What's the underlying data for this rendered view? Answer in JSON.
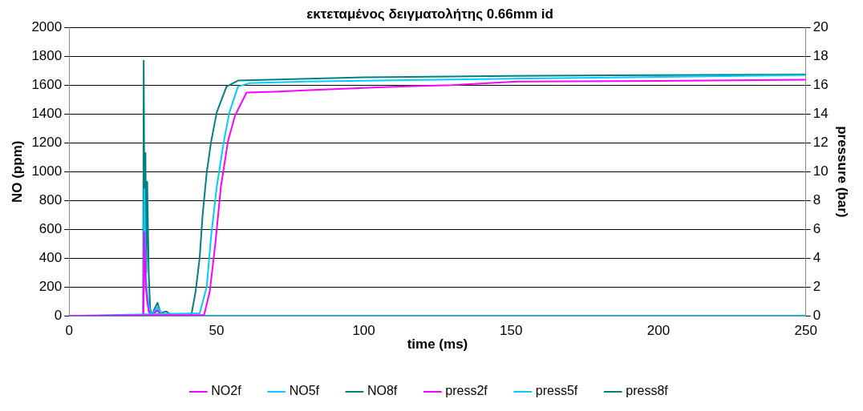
{
  "chart_data": {
    "type": "line",
    "title": "εκτεταμένος δειγματολήτης 0.66mm id",
    "xlabel": "time (ms)",
    "ylabel": "NO (ppm)",
    "y2label": "pressure (bar)",
    "xlim": [
      0,
      250
    ],
    "xticks": [
      0,
      50,
      100,
      150,
      200,
      250
    ],
    "ylim": [
      0,
      2000
    ],
    "yticks": [
      0,
      200,
      400,
      600,
      800,
      1000,
      1200,
      1400,
      1600,
      1800,
      2000
    ],
    "y2lim": [
      0,
      20
    ],
    "y2ticks": [
      0,
      2,
      4,
      6,
      8,
      10,
      12,
      14,
      16,
      18,
      20
    ],
    "grid": "y",
    "legend": "bottom",
    "marker": "none",
    "line_style": "solid",
    "series": [
      {
        "name": "NO2f",
        "color": "#ff00ff",
        "x": [
          0,
          45.8,
          47.7,
          49.6,
          51.5,
          53.9,
          56.3,
          60.2,
          70,
          80,
          110,
          130,
          152,
          200,
          250
        ],
        "values": [
          0,
          6,
          166,
          498,
          896,
          1211,
          1389,
          1549,
          1555,
          1565,
          1590,
          1600,
          1626,
          1630,
          1638
        ]
      },
      {
        "name": "NO5f",
        "color": "#00ccff",
        "x": [
          0,
          44.3,
          46.7,
          48.2,
          50.1,
          52.5,
          54.4,
          57.3,
          61.1,
          80,
          150,
          250
        ],
        "values": [
          0,
          18,
          202,
          558,
          896,
          1211,
          1412,
          1590,
          1614,
          1625,
          1645,
          1670
        ]
      },
      {
        "name": "NO8f",
        "color": "#008080",
        "x": [
          0,
          41.4,
          42.9,
          44.3,
          45.3,
          46.7,
          48.2,
          50.1,
          53.4,
          57.3,
          100,
          150,
          250
        ],
        "values": [
          0,
          0,
          166,
          404,
          700,
          997,
          1211,
          1412,
          1590,
          1632,
          1655,
          1665,
          1674
        ]
      },
      {
        "name": "press2f",
        "color": "#ff00ff",
        "axis": "y2",
        "x": [
          0,
          25.2,
          25.5,
          26,
          26.5,
          27,
          28,
          30,
          31
        ],
        "values": [
          0,
          0,
          5.8,
          2,
          1,
          0.3,
          0,
          0.4,
          0
        ]
      },
      {
        "name": "press5f",
        "color": "#00ccff",
        "axis": "y2",
        "x": [
          0,
          25.2,
          25.5,
          26,
          26.5,
          27,
          27.5,
          29,
          30,
          32,
          250
        ],
        "values": [
          0,
          0,
          8.8,
          3,
          1.5,
          0.8,
          0.2,
          0.3,
          0.6,
          0,
          0
        ]
      },
      {
        "name": "press8f",
        "color": "#008080",
        "axis": "y2",
        "x": [
          0,
          25.1,
          25.3,
          25.6,
          25.9,
          26.2,
          26.5,
          27,
          27.5,
          28,
          29,
          30,
          31,
          33,
          35,
          250
        ],
        "values": [
          0,
          0,
          17.7,
          5,
          11.3,
          3,
          9.3,
          3,
          0.5,
          0,
          0.5,
          0.9,
          0.2,
          0.3,
          0,
          0
        ]
      }
    ]
  }
}
